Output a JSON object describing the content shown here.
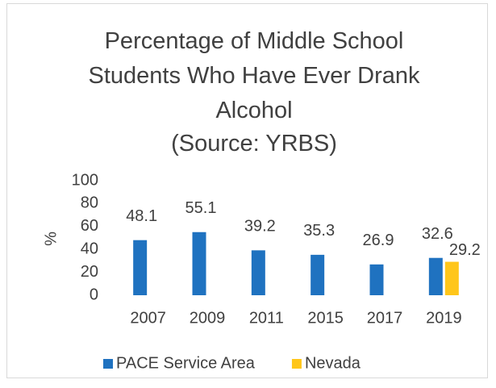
{
  "chart_data": {
    "type": "bar",
    "title": "Percentage of Middle School Students Who Have Ever Drank Alcohol",
    "subtitle": "(Source: YRBS)",
    "y_label": "%",
    "categories": [
      "2007",
      "2009",
      "2011",
      "2015",
      "2017",
      "2019"
    ],
    "series": [
      {
        "name": "PACE Service Area",
        "color": "#1f72c0",
        "values": [
          48.1,
          55.1,
          39.2,
          35.3,
          26.9,
          32.6
        ]
      },
      {
        "name": "Nevada",
        "color": "#ffc61a",
        "values": [
          null,
          null,
          null,
          null,
          null,
          29.2
        ]
      }
    ],
    "ylim": [
      0,
      100
    ],
    "yticks": [
      0,
      20,
      40,
      60,
      80,
      100
    ],
    "grid": false,
    "legend": "bottom"
  }
}
